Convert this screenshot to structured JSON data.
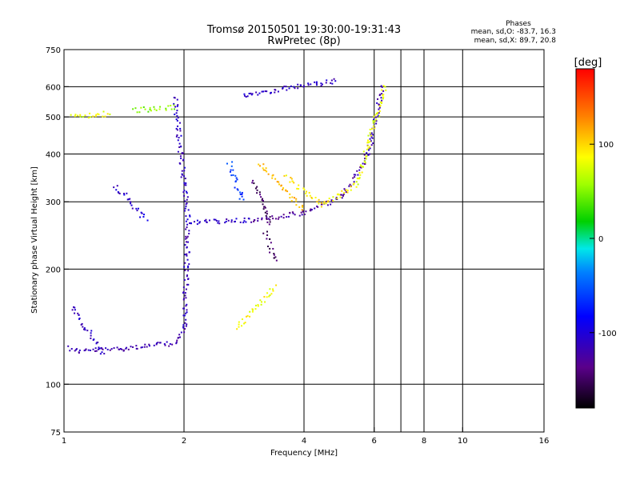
{
  "chart_data": {
    "type": "scatter",
    "title": "Tromsø 20150501 19:30:00-19:31:43",
    "subtitle": "RwPretec (8p)",
    "xlabel": "Frequency [MHz]",
    "ylabel": "Stationary phase Virtual Height [km]",
    "x_scale": "log",
    "y_scale": "log",
    "xlim": [
      1,
      16
    ],
    "ylim": [
      75,
      750
    ],
    "x_ticks": [
      1,
      2,
      4,
      6,
      8,
      10,
      16
    ],
    "y_ticks": [
      75,
      100,
      200,
      300,
      400,
      500,
      600,
      750
    ],
    "x_grid": [
      2,
      4,
      6,
      7,
      8,
      10
    ],
    "y_grid": [
      100,
      200,
      300,
      400,
      500,
      600
    ],
    "grid": true,
    "stats": {
      "heading": "Phases",
      "line_o": "mean, sd,O: -83.7, 16.3",
      "line_x": "mean, sd,X:  89.7, 20.8"
    },
    "colorbar": {
      "label": "[deg]",
      "range": [
        -180,
        180
      ],
      "ticks": [
        100,
        0,
        -100
      ],
      "colormap": "rainbow"
    },
    "series": [
      {
        "traces": [
          {
            "from": [
              1.02,
              125
            ],
            "to": [
              1.08,
              122
            ],
            "phase": -120
          },
          {
            "from": [
              1.08,
              122
            ],
            "to": [
              1.4,
              124
            ],
            "phase": -118
          },
          {
            "from": [
              1.4,
              124
            ],
            "to": [
              1.9,
              128
            ],
            "phase": -122
          },
          {
            "from": [
              1.9,
              128
            ],
            "to": [
              2.0,
              140
            ],
            "phase": -120
          },
          {
            "from": [
              2.0,
              140
            ],
            "to": [
              2.05,
              260
            ],
            "phase": -115
          },
          {
            "from": [
              1.9,
              560
            ],
            "to": [
              2.05,
              265
            ],
            "phase": -110
          },
          {
            "from": [
              2.05,
              265
            ],
            "to": [
              3.0,
              268
            ],
            "phase": -112
          },
          {
            "from": [
              3.0,
              268
            ],
            "to": [
              4.0,
              280
            ],
            "phase": -125
          },
          {
            "from": [
              4.0,
              280
            ],
            "to": [
              5.0,
              310
            ],
            "phase": -130
          },
          {
            "from": [
              5.0,
              310
            ],
            "to": [
              5.8,
              400
            ],
            "phase": -125
          },
          {
            "from": [
              5.8,
              400
            ],
            "to": [
              6.3,
              600
            ],
            "phase": -115
          },
          {
            "from": [
              2.8,
              570
            ],
            "to": [
              4.8,
              620
            ],
            "phase": -110
          },
          {
            "from": [
              1.35,
              330
            ],
            "to": [
              1.6,
              270
            ],
            "phase": -105
          },
          {
            "from": [
              1.05,
              160
            ],
            "to": [
              1.25,
              120
            ],
            "phase": -110
          },
          {
            "from": [
              3.1,
              380
            ],
            "to": [
              4.0,
              285
            ],
            "phase": 110
          },
          {
            "from": [
              3.6,
              350
            ],
            "to": [
              4.4,
              295
            ],
            "phase": 95
          },
          {
            "from": [
              4.4,
              295
            ],
            "to": [
              5.4,
              330
            ],
            "phase": 90
          },
          {
            "from": [
              5.4,
              330
            ],
            "to": [
              6.4,
              600
            ],
            "phase": 80
          },
          {
            "from": [
              2.7,
              140
            ],
            "to": [
              3.4,
              180
            ],
            "phase": 85
          },
          {
            "from": [
              3.0,
              340
            ],
            "to": [
              3.3,
              260
            ],
            "phase": -150
          },
          {
            "from": [
              3.2,
              250
            ],
            "to": [
              3.4,
              210
            ],
            "phase": -150
          },
          {
            "from": [
              1.05,
              500
            ],
            "to": [
              1.3,
              510
            ],
            "phase": 80
          },
          {
            "from": [
              1.5,
              520
            ],
            "to": [
              1.9,
              530
            ],
            "phase": 50
          },
          {
            "from": [
              2.6,
              380
            ],
            "to": [
              2.8,
              300
            ],
            "phase": -60
          }
        ]
      }
    ]
  }
}
